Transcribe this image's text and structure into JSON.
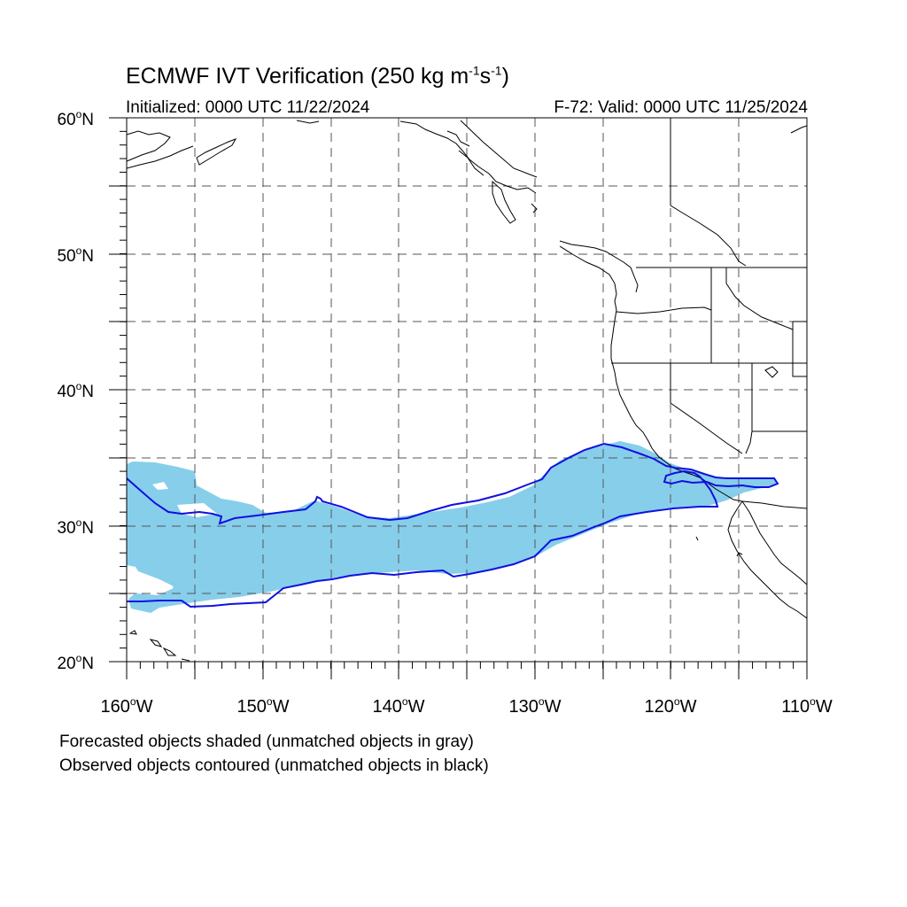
{
  "header": {
    "title_prefix": "ECMWF IVT Verification (250 kg m",
    "title_exp1": "-1",
    "title_mid": "s",
    "title_exp2": "-1",
    "title_suffix": ")",
    "initialized": "Initialized: 0000 UTC 11/22/2024",
    "valid": "F-72: Valid: 0000 UTC 11/25/2024"
  },
  "legend_notes": {
    "line1": "Forecasted objects shaded (unmatched objects in gray)",
    "line2": "Observed objects contoured (unmatched objects in black)"
  },
  "map": {
    "lat_labels": [
      {
        "lat": 60,
        "text": "60",
        "suffix": "N"
      },
      {
        "lat": 50,
        "text": "50",
        "suffix": "N"
      },
      {
        "lat": 40,
        "text": "40",
        "suffix": "N"
      },
      {
        "lat": 30,
        "text": "30",
        "suffix": "N"
      },
      {
        "lat": 20,
        "text": "20",
        "suffix": "N"
      }
    ],
    "lon_labels": [
      {
        "lon": -160,
        "text": "160",
        "suffix": "W"
      },
      {
        "lon": -150,
        "text": "150",
        "suffix": "W"
      },
      {
        "lon": -140,
        "text": "140",
        "suffix": "W"
      },
      {
        "lon": -130,
        "text": "130",
        "suffix": "W"
      },
      {
        "lon": -120,
        "text": "120",
        "suffix": "W"
      },
      {
        "lon": -110,
        "text": "110",
        "suffix": "W"
      }
    ],
    "extent": {
      "lon_min": -160,
      "lon_max": -110,
      "lat_min": 20,
      "lat_max": 60
    },
    "colors": {
      "forecast_fill": "#87ceeb",
      "observed_contour": "#1010e0",
      "coastline": "#000000",
      "grid": "#555555"
    }
  }
}
